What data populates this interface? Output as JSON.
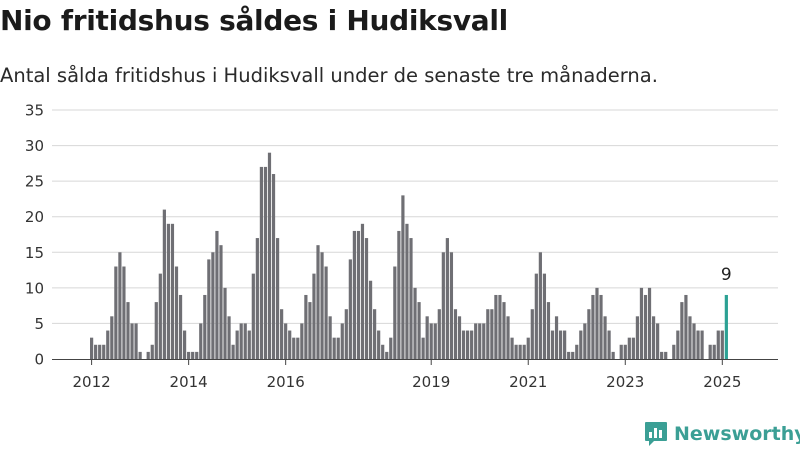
{
  "header": {
    "title": "Nio fritidshus såldes i Hudiksvall",
    "subtitle": "Antal sålda fritidshus i Hudiksvall under de senaste tre månaderna."
  },
  "brand": {
    "name": "Newsworthy",
    "color": "#3b9f95",
    "icon": "bar-chart-logo-icon"
  },
  "chart_data": {
    "type": "bar",
    "title": "Nio fritidshus såldes i Hudiksvall",
    "subtitle": "Antal sålda fritidshus i Hudiksvall under de senaste tre månaderna.",
    "x_start": "2012-01",
    "interval": "month",
    "ylim": [
      0,
      35
    ],
    "yticks": [
      0,
      5,
      10,
      15,
      20,
      25,
      30,
      35
    ],
    "xtick_labels": [
      "2012",
      "2014",
      "2016",
      "2019",
      "2021",
      "2023",
      "2025"
    ],
    "grid": true,
    "bar_color": "#6f6f74",
    "highlight_color": "#2ca194",
    "highlight_label": "9",
    "values": [
      3,
      2,
      2,
      2,
      4,
      6,
      13,
      15,
      13,
      8,
      5,
      5,
      1,
      0,
      1,
      2,
      8,
      12,
      21,
      19,
      19,
      13,
      9,
      4,
      1,
      1,
      1,
      5,
      9,
      14,
      15,
      18,
      16,
      10,
      6,
      2,
      4,
      5,
      5,
      4,
      12,
      17,
      27,
      27,
      29,
      26,
      17,
      7,
      5,
      4,
      3,
      3,
      5,
      9,
      8,
      12,
      16,
      15,
      13,
      6,
      3,
      3,
      5,
      7,
      14,
      18,
      18,
      19,
      17,
      11,
      7,
      4,
      2,
      1,
      3,
      13,
      18,
      23,
      19,
      17,
      10,
      8,
      3,
      6,
      5,
      5,
      7,
      15,
      17,
      15,
      7,
      6,
      4,
      4,
      4,
      5,
      5,
      5,
      7,
      7,
      9,
      9,
      8,
      6,
      3,
      2,
      2,
      2,
      3,
      7,
      12,
      15,
      12,
      8,
      4,
      6,
      4,
      4,
      1,
      1,
      2,
      4,
      5,
      7,
      9,
      10,
      9,
      6,
      4,
      1,
      0,
      2,
      2,
      3,
      3,
      6,
      10,
      9,
      10,
      6,
      5,
      1,
      1,
      0,
      2,
      4,
      8,
      9,
      6,
      5,
      4,
      4,
      0,
      2,
      2,
      4,
      4,
      9
    ]
  }
}
